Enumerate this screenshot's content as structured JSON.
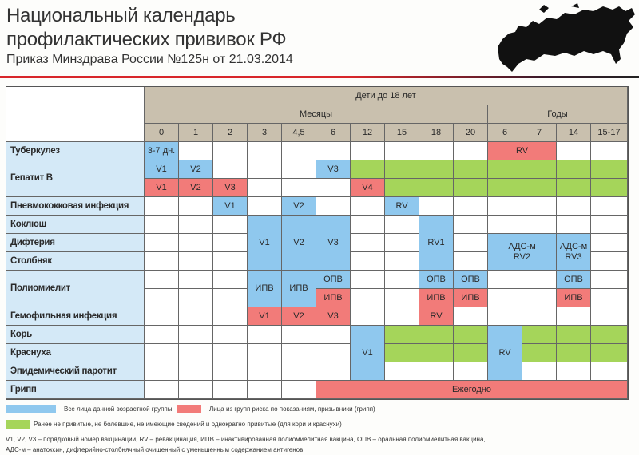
{
  "header": {
    "title_line1": "Национальный календарь",
    "title_line2": "профилактических прививок РФ",
    "subtitle": "Приказ Минздрава России №125н от 21.03.2014"
  },
  "colors": {
    "blue": "#8fc8ee",
    "red": "#f27b79",
    "green": "#a5d55a",
    "header": "#c9c0ae",
    "label": "#d4e9f7"
  },
  "table": {
    "group_header": "Дети до 18 лет",
    "months_label": "Месяцы",
    "years_label": "Годы",
    "columns": [
      "0",
      "1",
      "2",
      "3",
      "4,5",
      "6",
      "12",
      "15",
      "18",
      "20",
      "6",
      "7",
      "14",
      "15-17"
    ],
    "diseases": [
      {
        "name": "Туберкулез",
        "start": 0,
        "span": 1
      },
      {
        "name": "Гепатит В",
        "start": 1,
        "span": 2
      },
      {
        "name": "Пневмококковая инфекция",
        "start": 3,
        "span": 1
      },
      {
        "name": "Коклюш",
        "start": 4,
        "span": 1
      },
      {
        "name": "Дифтерия",
        "start": 5,
        "span": 1
      },
      {
        "name": "Столбняк",
        "start": 6,
        "span": 1
      },
      {
        "name": "Полиомиелит",
        "start": 7,
        "span": 2
      },
      {
        "name": "Гемофильная инфекция",
        "start": 9,
        "span": 1
      },
      {
        "name": "Корь",
        "start": 10,
        "span": 1
      },
      {
        "name": "Краснуха",
        "start": 11,
        "span": 1
      },
      {
        "name": "Эпидемический паротит",
        "start": 12,
        "span": 1
      },
      {
        "name": "Грипп",
        "start": 13,
        "span": 1
      }
    ],
    "cells": [
      {
        "r": 0,
        "c": 0,
        "t": "3-7 дн.",
        "f": "blue"
      },
      {
        "r": 0,
        "c": 10,
        "cs": 2,
        "t": "RV",
        "f": "red"
      },
      {
        "r": 1,
        "c": 0,
        "t": "V1",
        "f": "blue"
      },
      {
        "r": 1,
        "c": 1,
        "t": "V2",
        "f": "blue"
      },
      {
        "r": 1,
        "c": 5,
        "t": "V3",
        "f": "blue"
      },
      {
        "r": 2,
        "c": 0,
        "t": "V1",
        "f": "red"
      },
      {
        "r": 2,
        "c": 1,
        "t": "V2",
        "f": "red"
      },
      {
        "r": 2,
        "c": 2,
        "t": "V3",
        "f": "red"
      },
      {
        "r": 2,
        "c": 6,
        "t": "V4",
        "f": "red"
      },
      {
        "r": 3,
        "c": 2,
        "t": "V1",
        "f": "blue"
      },
      {
        "r": 3,
        "c": 4,
        "t": "V2",
        "f": "blue"
      },
      {
        "r": 3,
        "c": 7,
        "t": "RV",
        "f": "blue"
      },
      {
        "r": 4,
        "c": 3,
        "rs": 3,
        "t": "V1",
        "f": "blue"
      },
      {
        "r": 4,
        "c": 4,
        "rs": 3,
        "t": "V2",
        "f": "blue"
      },
      {
        "r": 4,
        "c": 5,
        "rs": 3,
        "t": "V3",
        "f": "blue"
      },
      {
        "r": 4,
        "c": 8,
        "rs": 3,
        "t": "RV1",
        "f": "blue"
      },
      {
        "r": 5,
        "c": 10,
        "rs": 2,
        "cs": 2,
        "t": "АДС-м\nRV2",
        "f": "blue"
      },
      {
        "r": 5,
        "c": 12,
        "rs": 2,
        "t": "АДС-м\nRV3",
        "f": "blue"
      },
      {
        "r": 7,
        "c": 3,
        "rs": 2,
        "t": "ИПВ",
        "f": "blue"
      },
      {
        "r": 7,
        "c": 4,
        "rs": 2,
        "t": "ИПВ",
        "f": "blue"
      },
      {
        "r": 7,
        "c": 5,
        "t": "ОПВ",
        "f": "blue"
      },
      {
        "r": 8,
        "c": 5,
        "t": "ИПВ",
        "f": "red"
      },
      {
        "r": 7,
        "c": 8,
        "t": "ОПВ",
        "f": "blue"
      },
      {
        "r": 8,
        "c": 8,
        "t": "ИПВ",
        "f": "red"
      },
      {
        "r": 7,
        "c": 9,
        "t": "ОПВ",
        "f": "blue"
      },
      {
        "r": 8,
        "c": 9,
        "t": "ИПВ",
        "f": "red"
      },
      {
        "r": 7,
        "c": 12,
        "t": "ОПВ",
        "f": "blue"
      },
      {
        "r": 8,
        "c": 12,
        "t": "ИПВ",
        "f": "red"
      },
      {
        "r": 9,
        "c": 3,
        "t": "V1",
        "f": "red"
      },
      {
        "r": 9,
        "c": 4,
        "t": "V2",
        "f": "red"
      },
      {
        "r": 9,
        "c": 5,
        "t": "V3",
        "f": "red"
      },
      {
        "r": 9,
        "c": 8,
        "t": "RV",
        "f": "red"
      },
      {
        "r": 10,
        "c": 6,
        "rs": 3,
        "t": "V1",
        "f": "blue"
      },
      {
        "r": 10,
        "c": 10,
        "rs": 3,
        "t": "RV",
        "f": "blue"
      },
      {
        "r": 13,
        "c": 5,
        "cs": 9,
        "t": "Ежегодно",
        "f": "red"
      }
    ],
    "green_cells": [
      {
        "r": 1,
        "cols": [
          6,
          7,
          8,
          9,
          10,
          11,
          12,
          13
        ]
      },
      {
        "r": 2,
        "cols": [
          7,
          8,
          9,
          10,
          11,
          12,
          13
        ]
      },
      {
        "r": 10,
        "cols": [
          7,
          8,
          9,
          11,
          12,
          13
        ]
      },
      {
        "r": 11,
        "cols": [
          7,
          8,
          9,
          11,
          12,
          13
        ]
      }
    ]
  },
  "legend": {
    "blue": "Все лица данной возрастной группы",
    "red": "Лица из групп риска по показаниям, призывники (грипп)",
    "green": "Ранее не привитые, не болевшие, не имеющие сведений и однократно привитые (для кори и краснухи)",
    "note1": "V1, V2, V3 – порядковый номер вакцинации, RV – ревакцинация,  ИПВ – инактивированная полиомиелитная вакцина, ОПВ – оральная полиомиелитная вакцина,",
    "note2": "АДС-м – анатоксин, дифтерийно-столбнячный очищенный с уменьшенным содержанием антигенов"
  }
}
